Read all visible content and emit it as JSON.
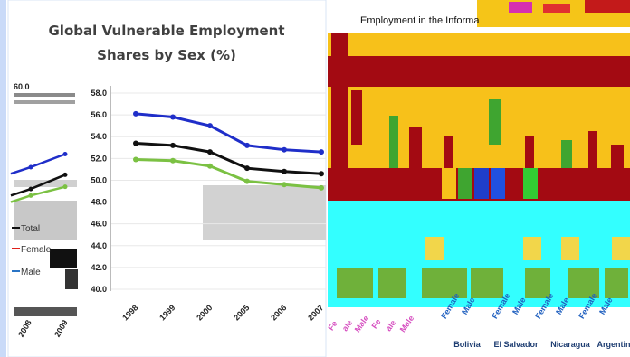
{
  "chart_data": [
    {
      "type": "line",
      "title_line1": "Global Vulnerable Employment",
      "title_line2": "Shares by Sex (%)",
      "x": [
        "1998",
        "1999",
        "2000",
        "2005",
        "2006",
        "2007"
      ],
      "ylim": [
        40.0,
        58.0
      ],
      "yticks": [
        "58.0",
        "56.0",
        "54.0",
        "52.0",
        "50.0",
        "48.0",
        "46.0",
        "44.0",
        "42.0",
        "40.0"
      ],
      "grid": true,
      "series": [
        {
          "name": "",
          "color": "#1f2ec9",
          "values": [
            56.1,
            55.8,
            55.0,
            53.2,
            52.8,
            52.6
          ]
        },
        {
          "name": "",
          "color": "#111111",
          "values": [
            53.4,
            53.2,
            52.6,
            51.1,
            50.8,
            50.6
          ]
        },
        {
          "name": "",
          "color": "#7bc143",
          "values": [
            51.9,
            51.8,
            51.3,
            49.9,
            49.6,
            49.3
          ]
        }
      ]
    },
    {
      "type": "line",
      "partial": true,
      "x": [
        "2008",
        "2009"
      ],
      "y_label_fragment": "60.0",
      "legend": [
        "Total",
        "Female",
        "Male"
      ],
      "series": [
        {
          "name": "",
          "color": "#1f2ec9",
          "values": [
            51.2,
            52.4
          ]
        },
        {
          "name": "",
          "color": "#111111",
          "values": [
            49.2,
            50.5
          ]
        },
        {
          "name": "",
          "color": "#7bc143",
          "values": [
            48.6,
            49.4
          ]
        }
      ]
    },
    {
      "type": "bar",
      "partial": true,
      "title": "Employment in the Informa",
      "bar_labels": [
        "Female",
        "Male",
        "Female",
        "Male",
        "Female",
        "Male",
        "Female",
        "Male"
      ],
      "left_labels": [
        "Fe",
        "ale",
        "Male",
        "Fe",
        "ale",
        "Male"
      ],
      "groups": [
        "Bolivia",
        "El Salvador",
        "Nicaragua",
        "Argentin"
      ],
      "colors": {
        "dark_red": "#a30a12",
        "gold": "#f7c11a",
        "cyan": "#33ffff",
        "green": "#3fa530"
      }
    }
  ]
}
